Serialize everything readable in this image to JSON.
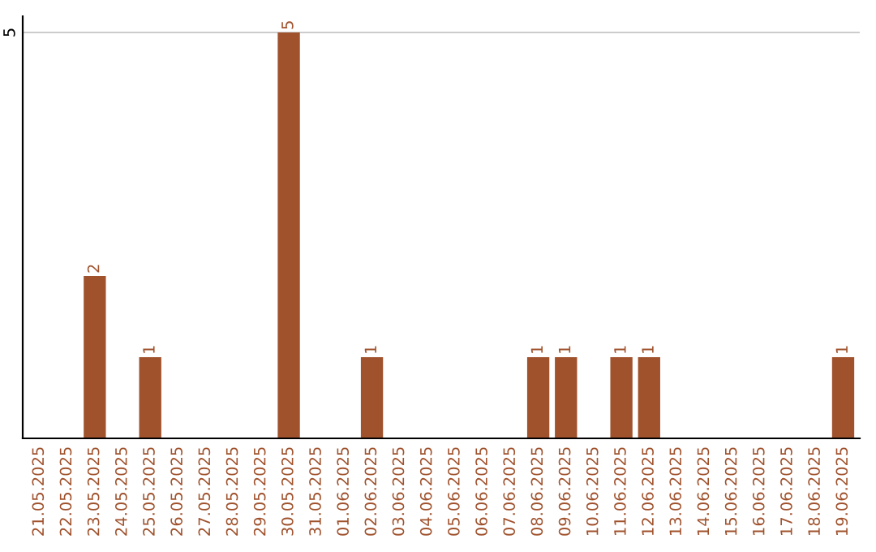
{
  "chart_data": {
    "type": "bar",
    "categories": [
      "21.05.2025",
      "22.05.2025",
      "23.05.2025",
      "24.05.2025",
      "25.05.2025",
      "26.05.2025",
      "27.05.2025",
      "28.05.2025",
      "29.05.2025",
      "30.05.2025",
      "31.05.2025",
      "01.06.2025",
      "02.06.2025",
      "03.06.2025",
      "04.06.2025",
      "05.06.2025",
      "06.06.2025",
      "07.06.2025",
      "08.06.2025",
      "09.06.2025",
      "10.06.2025",
      "11.06.2025",
      "12.06.2025",
      "13.06.2025",
      "14.06.2025",
      "15.06.2025",
      "16.06.2025",
      "17.06.2025",
      "18.06.2025",
      "19.06.2025"
    ],
    "values": [
      0,
      0,
      2,
      0,
      1,
      0,
      0,
      0,
      0,
      5,
      0,
      0,
      1,
      0,
      0,
      0,
      0,
      0,
      1,
      1,
      0,
      1,
      1,
      0,
      0,
      0,
      0,
      0,
      0,
      1
    ],
    "value_labels": [
      null,
      null,
      "2",
      null,
      "1",
      null,
      null,
      null,
      null,
      "5",
      null,
      null,
      "1",
      null,
      null,
      null,
      null,
      null,
      "1",
      "1",
      null,
      "1",
      "1",
      null,
      null,
      null,
      null,
      null,
      null,
      "1"
    ],
    "color": "#a0522d",
    "ylim": [
      0,
      5.2
    ],
    "yticks": [
      5
    ],
    "grid": "y",
    "legend": false
  }
}
